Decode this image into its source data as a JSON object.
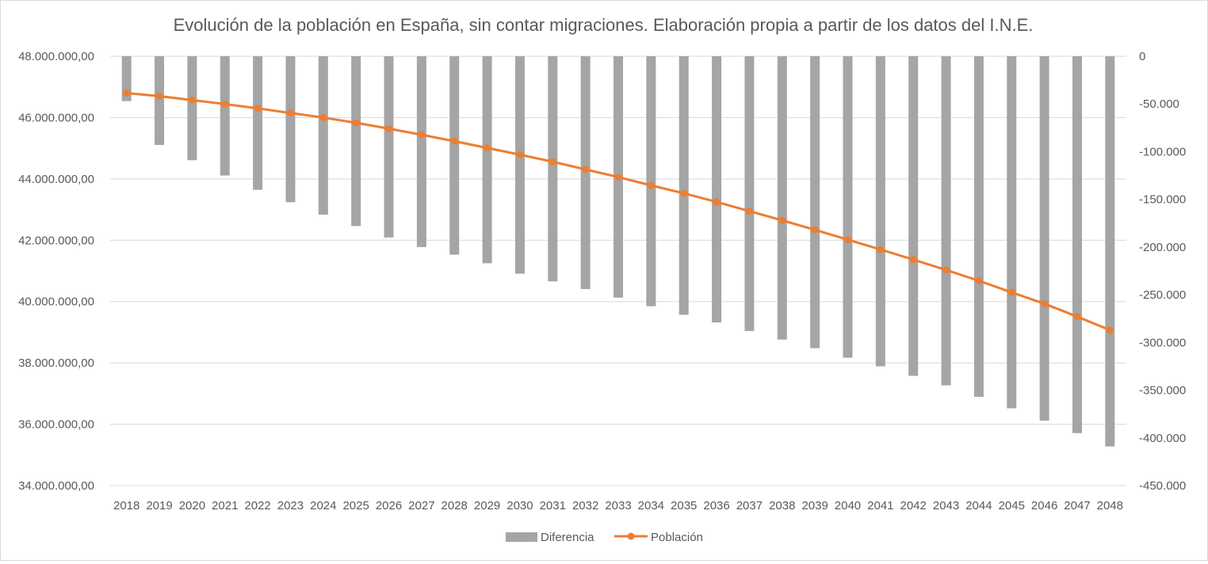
{
  "chart_data": {
    "type": "bar+line",
    "title": "Evolución de la población en España, sin contar migraciones. Elaboración propia a partir de los datos del I.N.E.",
    "categories": [
      "2018",
      "2019",
      "2020",
      "2021",
      "2022",
      "2023",
      "2024",
      "2025",
      "2026",
      "2027",
      "2028",
      "2029",
      "2030",
      "2031",
      "2032",
      "2033",
      "2034",
      "2035",
      "2036",
      "2037",
      "2038",
      "2039",
      "2040",
      "2041",
      "2042",
      "2043",
      "2044",
      "2045",
      "2046",
      "2047",
      "2048"
    ],
    "series": [
      {
        "name": "Diferencia",
        "type": "bar",
        "axis": "right",
        "color": "#a5a5a5",
        "values": [
          -47000,
          -93000,
          -109000,
          -125000,
          -140000,
          -153000,
          -166000,
          -178000,
          -190000,
          -200000,
          -208000,
          -217000,
          -228000,
          -236000,
          -244000,
          -253000,
          -262000,
          -271000,
          -279000,
          -288000,
          -297000,
          -306000,
          -316000,
          -325000,
          -335000,
          -345000,
          -357000,
          -369000,
          -382000,
          -395000,
          -409000
        ]
      },
      {
        "name": "Población",
        "type": "line",
        "axis": "left",
        "color": "#ed7d31",
        "values": [
          46800000,
          46700000,
          46570000,
          46440000,
          46300000,
          46150000,
          46000000,
          45830000,
          45640000,
          45440000,
          45230000,
          45010000,
          44790000,
          44560000,
          44310000,
          44060000,
          43790000,
          43530000,
          43250000,
          42950000,
          42650000,
          42340000,
          42020000,
          41700000,
          41370000,
          41030000,
          40680000,
          40300000,
          39930000,
          39510000,
          39070000
        ]
      }
    ],
    "left_axis": {
      "min": 34000000,
      "max": 48000000,
      "ticks": [
        "48.000.000,00",
        "46.000.000,00",
        "44.000.000,00",
        "42.000.000,00",
        "40.000.000,00",
        "38.000.000,00",
        "36.000.000,00",
        "34.000.000,00"
      ]
    },
    "right_axis": {
      "min": -450000,
      "max": 0,
      "ticks": [
        "0",
        "-50.000",
        "-100.000",
        "-150.000",
        "-200.000",
        "-250.000",
        "-300.000",
        "-350.000",
        "-400.000",
        "-450.000"
      ]
    },
    "grid": true,
    "legend": "bottom"
  }
}
